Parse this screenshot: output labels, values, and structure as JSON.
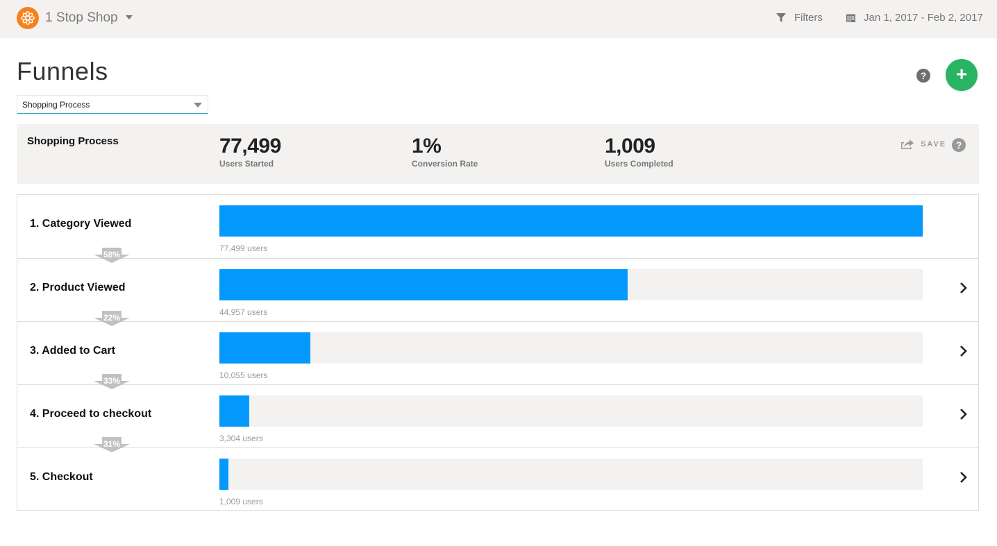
{
  "topbar": {
    "app_name": "1 Stop Shop",
    "logo_icon": "orange-flower-logo-icon",
    "filters_label": "Filters",
    "filters_icon": "funnel-filter-icon",
    "date_range": "Jan 1, 2017 - Feb 2, 2017",
    "date_icon": "calendar-icon"
  },
  "header": {
    "title": "Funnels",
    "selected_funnel": "Shopping Process",
    "help_icon": "question-circle-icon",
    "add_icon": "plus-icon"
  },
  "summary": {
    "title": "Shopping Process",
    "stats": [
      {
        "value": "77,499",
        "label": "Users Started"
      },
      {
        "value": "1%",
        "label": "Conversion Rate"
      },
      {
        "value": "1,009",
        "label": "Users Completed"
      }
    ],
    "save_label": "SAVE",
    "save_icon": "share-export-icon"
  },
  "colors": {
    "bar": "#0399fd",
    "track": "#f3f2f1",
    "add_button": "#28b463",
    "logo": "#f5821f",
    "dropoff_badge": "#c4c0bd"
  },
  "chart_data": {
    "type": "bar",
    "categories": [
      "1.  Category Viewed",
      "2.  Product Viewed",
      "3.  Added to Cart",
      "4.  Proceed to checkout",
      "5.  Checkout"
    ],
    "values": [
      77499,
      44957,
      10055,
      3304,
      1009
    ],
    "value_labels": [
      "77,499 users",
      "44,957 users",
      "10,055 users",
      "3,304 users",
      "1,009 users"
    ],
    "conversion_labels": [
      "58%",
      "22%",
      "33%",
      "31%"
    ],
    "xlim": [
      0,
      77499
    ]
  }
}
